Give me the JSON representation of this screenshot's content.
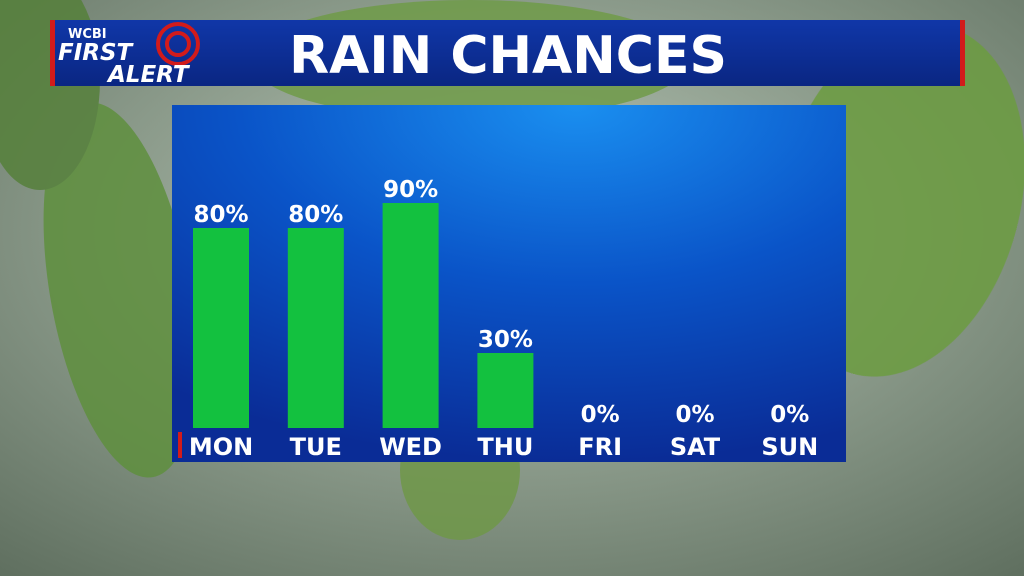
{
  "header": {
    "station": "WCBI",
    "brand_top": "FIRST",
    "brand_bottom": "ALERT"
  },
  "chart_data": {
    "type": "bar",
    "title": "RAIN CHANCES",
    "categories": [
      "MON",
      "TUE",
      "WED",
      "THU",
      "FRI",
      "SAT",
      "SUN"
    ],
    "values": [
      80,
      80,
      90,
      30,
      0,
      0,
      0
    ],
    "value_labels": [
      "80%",
      "80%",
      "90%",
      "30%",
      "0%",
      "0%",
      "0%"
    ],
    "color": "#13c13f"
  }
}
